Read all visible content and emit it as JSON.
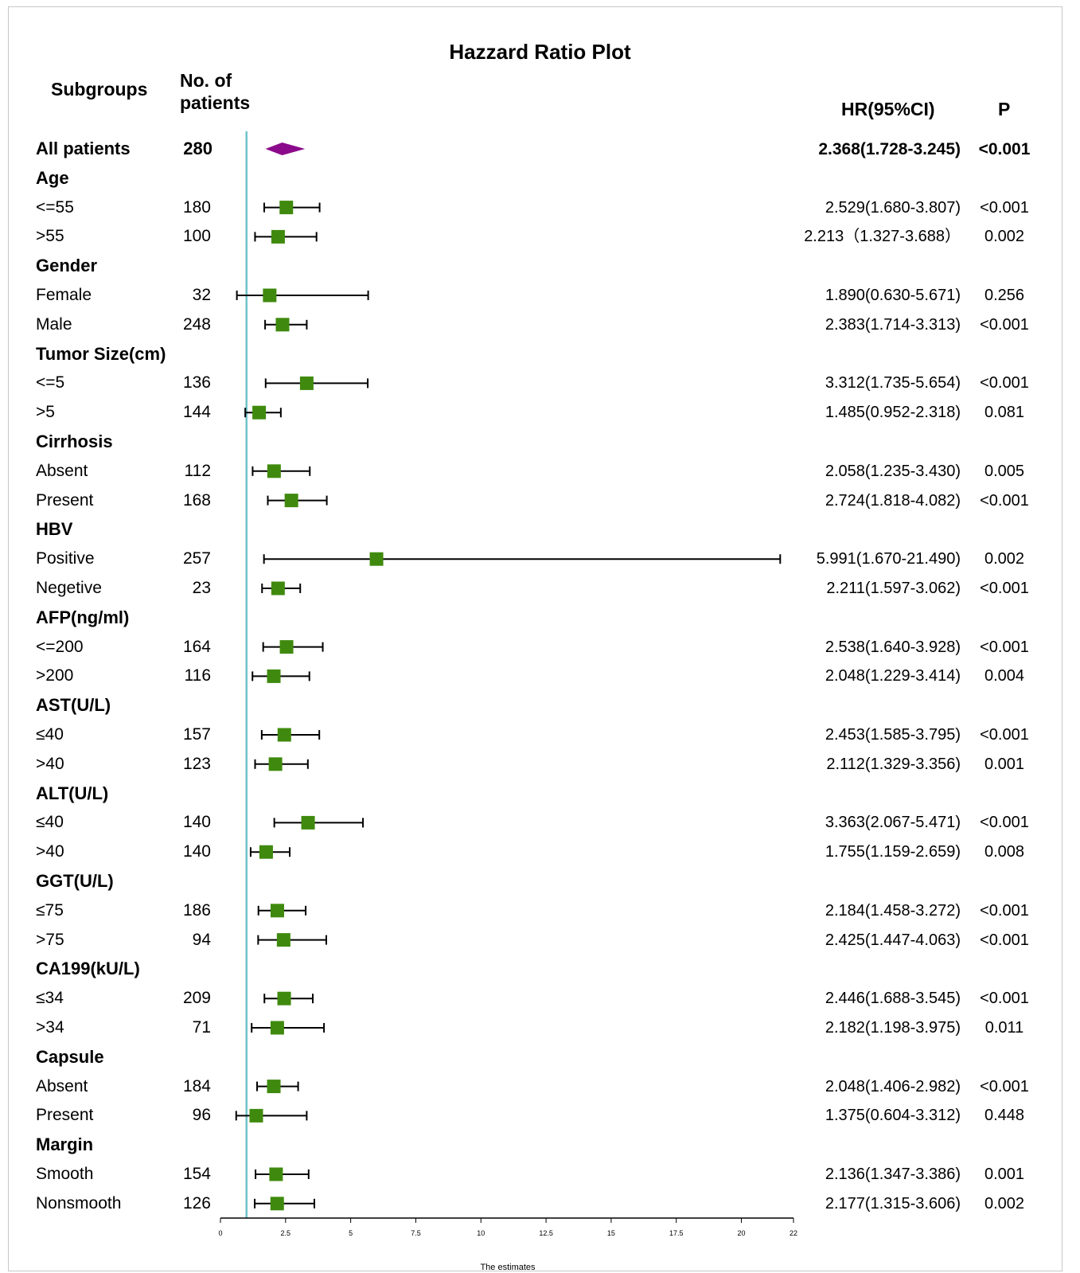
{
  "chart_data": {
    "type": "forest",
    "title": "Hazzard Ratio Plot",
    "xlabel": "The estimates",
    "xlim": [
      0,
      22
    ],
    "x_ticks": [
      {
        "value": 0,
        "label": "0"
      },
      {
        "value": 2.5,
        "label": "2.5"
      },
      {
        "value": 5,
        "label": "5"
      },
      {
        "value": 7.5,
        "label": "7.5"
      },
      {
        "value": 10,
        "label": "10"
      },
      {
        "value": 12.5,
        "label": "12.5"
      },
      {
        "value": 15,
        "label": "15"
      },
      {
        "value": 17.5,
        "label": "17.5"
      },
      {
        "value": 20,
        "label": "20"
      },
      {
        "value": 22,
        "label": "22"
      }
    ],
    "reference_line": 1,
    "columns": {
      "subgroups": "Subgroups",
      "patients_line1": "No. of",
      "patients_line2": "patients",
      "hr": "HR(95%CI)",
      "p": "P"
    },
    "colors": {
      "box": "#3f8a0e",
      "diamond": "#8b0a8b",
      "reference": "#6ec3c9",
      "ci": "#000000"
    },
    "rows": [
      {
        "label": "All patients",
        "kind": "overall",
        "n": "280",
        "hr": 2.368,
        "lo": 1.728,
        "hi": 3.245,
        "hr_text": "2.368(1.728-3.245)",
        "p": "<0.001"
      },
      {
        "label": "Age",
        "kind": "header"
      },
      {
        "label": "<=55",
        "kind": "item",
        "n": "180",
        "hr": 2.529,
        "lo": 1.68,
        "hi": 3.807,
        "hr_text": "2.529(1.680-3.807)",
        "p": "<0.001"
      },
      {
        "label": ">55",
        "kind": "item",
        "n": "100",
        "hr": 2.213,
        "lo": 1.327,
        "hi": 3.688,
        "hr_text": "2.213（1.327-3.688）",
        "p": "0.002"
      },
      {
        "label": "Gender",
        "kind": "header"
      },
      {
        "label": "Female",
        "kind": "item",
        "n": "32",
        "hr": 1.89,
        "lo": 0.63,
        "hi": 5.671,
        "hr_text": "1.890(0.630-5.671)",
        "p": "0.256"
      },
      {
        "label": "Male",
        "kind": "item",
        "n": "248",
        "hr": 2.383,
        "lo": 1.714,
        "hi": 3.313,
        "hr_text": "2.383(1.714-3.313)",
        "p": "<0.001"
      },
      {
        "label": "Tumor Size(cm)",
        "kind": "header"
      },
      {
        "label": "<=5",
        "kind": "item",
        "n": "136",
        "hr": 3.312,
        "lo": 1.735,
        "hi": 5.654,
        "hr_text": "3.312(1.735-5.654)",
        "p": "<0.001"
      },
      {
        "label": ">5",
        "kind": "item",
        "n": "144",
        "hr": 1.485,
        "lo": 0.952,
        "hi": 2.318,
        "hr_text": "1.485(0.952-2.318)",
        "p": "0.081"
      },
      {
        "label": "Cirrhosis",
        "kind": "header"
      },
      {
        "label": "Absent",
        "kind": "item",
        "n": "112",
        "hr": 2.058,
        "lo": 1.235,
        "hi": 3.43,
        "hr_text": "2.058(1.235-3.430)",
        "p": "0.005"
      },
      {
        "label": "Present",
        "kind": "item",
        "n": "168",
        "hr": 2.724,
        "lo": 1.818,
        "hi": 4.082,
        "hr_text": "2.724(1.818-4.082)",
        "p": "<0.001"
      },
      {
        "label": "HBV",
        "kind": "header"
      },
      {
        "label": "Positive",
        "kind": "item",
        "n": "257",
        "hr": 5.991,
        "lo": 1.67,
        "hi": 21.49,
        "hr_text": "5.991(1.670-21.490)",
        "p": "0.002"
      },
      {
        "label": "Negetive",
        "kind": "item",
        "n": "23",
        "hr": 2.211,
        "lo": 1.597,
        "hi": 3.062,
        "hr_text": "2.211(1.597-3.062)",
        "p": "<0.001"
      },
      {
        "label": "AFP(ng/ml)",
        "kind": "header"
      },
      {
        "label": "<=200",
        "kind": "item",
        "n": "164",
        "hr": 2.538,
        "lo": 1.64,
        "hi": 3.928,
        "hr_text": "2.538(1.640-3.928)",
        "p": "<0.001"
      },
      {
        "label": ">200",
        "kind": "item",
        "n": "116",
        "hr": 2.048,
        "lo": 1.229,
        "hi": 3.414,
        "hr_text": "2.048(1.229-3.414)",
        "p": "0.004"
      },
      {
        "label": "AST(U/L)",
        "kind": "header"
      },
      {
        "label": "≤40",
        "kind": "item",
        "n": "157",
        "hr": 2.453,
        "lo": 1.585,
        "hi": 3.795,
        "hr_text": "2.453(1.585-3.795)",
        "p": "<0.001"
      },
      {
        "label": ">40",
        "kind": "item",
        "n": "123",
        "hr": 2.112,
        "lo": 1.329,
        "hi": 3.356,
        "hr_text": "2.112(1.329-3.356)",
        "p": "0.001"
      },
      {
        "label": "ALT(U/L)",
        "kind": "header"
      },
      {
        "label": "≤40",
        "kind": "item",
        "n": "140",
        "hr": 3.363,
        "lo": 2.067,
        "hi": 5.471,
        "hr_text": "3.363(2.067-5.471)",
        "p": "<0.001"
      },
      {
        "label": ">40",
        "kind": "item",
        "n": "140",
        "hr": 1.755,
        "lo": 1.159,
        "hi": 2.659,
        "hr_text": "1.755(1.159-2.659)",
        "p": "0.008"
      },
      {
        "label": "GGT(U/L)",
        "kind": "header"
      },
      {
        "label": "≤75",
        "kind": "item",
        "n": "186",
        "hr": 2.184,
        "lo": 1.458,
        "hi": 3.272,
        "hr_text": "2.184(1.458-3.272)",
        "p": "<0.001"
      },
      {
        "label": ">75",
        "kind": "item",
        "n": "94",
        "hr": 2.425,
        "lo": 1.447,
        "hi": 4.063,
        "hr_text": "2.425(1.447-4.063)",
        "p": "<0.001"
      },
      {
        "label": "CA199(kU/L)",
        "kind": "header"
      },
      {
        "label": "≤34",
        "kind": "item",
        "n": "209",
        "hr": 2.446,
        "lo": 1.688,
        "hi": 3.545,
        "hr_text": "2.446(1.688-3.545)",
        "p": "<0.001"
      },
      {
        "label": ">34",
        "kind": "item",
        "n": "71",
        "hr": 2.182,
        "lo": 1.198,
        "hi": 3.975,
        "hr_text": "2.182(1.198-3.975)",
        "p": "0.011"
      },
      {
        "label": "Capsule",
        "kind": "header"
      },
      {
        "label": "Absent",
        "kind": "item",
        "n": "184",
        "hr": 2.048,
        "lo": 1.406,
        "hi": 2.982,
        "hr_text": "2.048(1.406-2.982)",
        "p": "<0.001"
      },
      {
        "label": "Present",
        "kind": "item",
        "n": "96",
        "hr": 1.375,
        "lo": 0.604,
        "hi": 3.312,
        "hr_text": "1.375(0.604-3.312)",
        "p": "0.448"
      },
      {
        "label": "Margin",
        "kind": "header"
      },
      {
        "label": "Smooth",
        "kind": "item",
        "n": "154",
        "hr": 2.136,
        "lo": 1.347,
        "hi": 3.386,
        "hr_text": "2.136(1.347-3.386)",
        "p": "0.001"
      },
      {
        "label": "Nonsmooth",
        "kind": "item",
        "n": "126",
        "hr": 2.177,
        "lo": 1.315,
        "hi": 3.606,
        "hr_text": "2.177(1.315-3.606)",
        "p": "0.002"
      }
    ]
  }
}
